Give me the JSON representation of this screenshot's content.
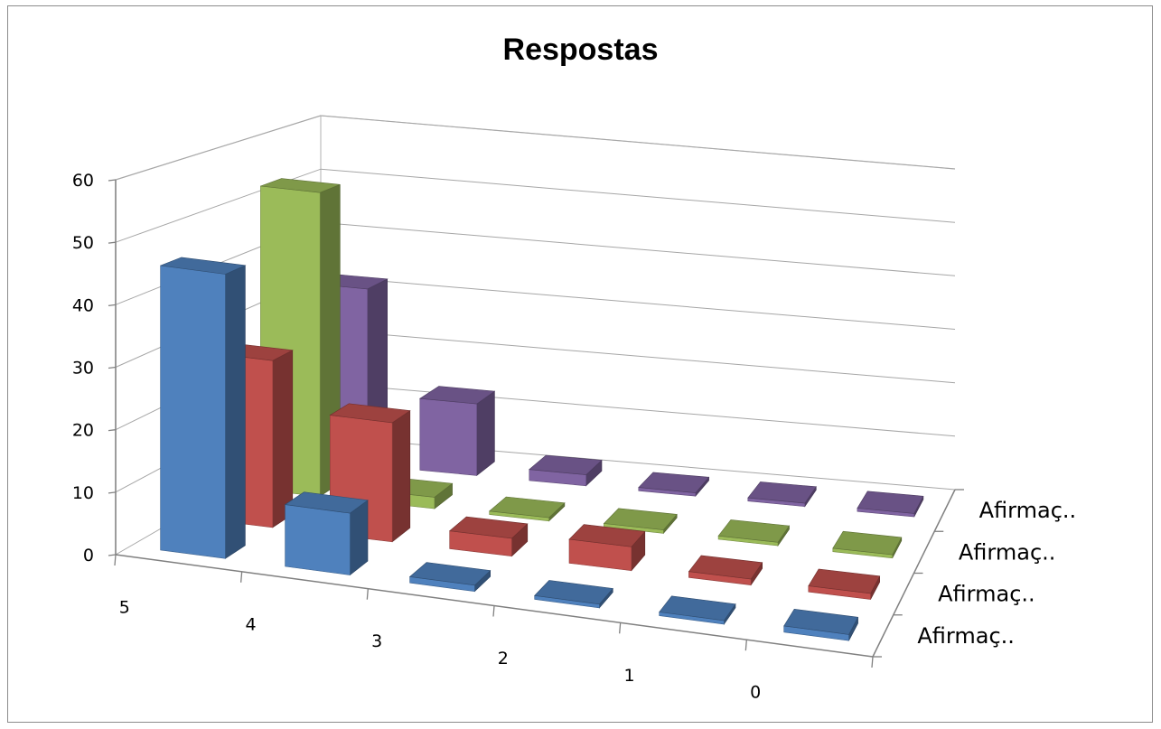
{
  "chart_data": {
    "type": "bar",
    "title": "Respostas",
    "categories": [
      "5",
      "4",
      "3",
      "2",
      "1",
      "0"
    ],
    "series": [
      {
        "name": "Afirmaç..",
        "color": "#4f81bd",
        "values": [
          46,
          10,
          1,
          0,
          0,
          1
        ]
      },
      {
        "name": "Afirmaç..",
        "color": "#c0504d",
        "values": [
          28,
          20,
          3,
          4,
          1,
          1
        ]
      },
      {
        "name": "Afirmaç..",
        "color": "#9bbb59",
        "values": [
          53,
          2,
          0,
          0,
          0,
          0
        ]
      },
      {
        "name": "Afirmaç..",
        "color": "#8064a2",
        "values": [
          32,
          13,
          2,
          0.5,
          0,
          0
        ]
      }
    ],
    "ylim": [
      0,
      60
    ],
    "yticks": [
      "0",
      "10",
      "20",
      "30",
      "40",
      "50",
      "60"
    ],
    "grid": true,
    "xlabel": "",
    "ylabel": "",
    "legend": "depth-axis labels on right"
  }
}
